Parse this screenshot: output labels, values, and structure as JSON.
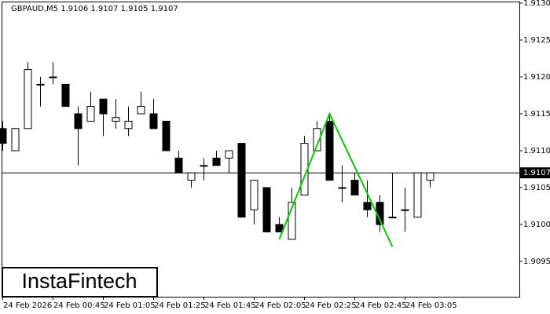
{
  "chart_data": {
    "type": "candlestick",
    "title": "GBPAUD,M5  1.9106 1.9107 1.9105 1.9107",
    "logo": "InstaFintech",
    "categories": [
      "24 Feb 2026",
      null,
      null,
      null,
      "24 Feb 00:45",
      null,
      null,
      null,
      "24 Feb 01:05",
      null,
      null,
      null,
      "24 Feb 01:25",
      null,
      null,
      null,
      "24 Feb 01:45",
      null,
      null,
      null,
      "24 Feb 02:05",
      null,
      null,
      null,
      "24 Feb 02:25",
      null,
      null,
      null,
      "24 Feb 02:45",
      null,
      null,
      null,
      "24 Feb 03:05",
      null,
      null
    ],
    "open": [
      1.9113,
      1.911,
      1.9113,
      1.9119,
      1.912,
      1.9119,
      1.9115,
      1.9114,
      1.9117,
      1.9114,
      1.9113,
      1.9115,
      1.9115,
      1.9114,
      1.9109,
      1.9106,
      1.9108,
      1.9109,
      1.9109,
      1.9111,
      1.9102,
      1.9105,
      1.91,
      1.9098,
      1.9104,
      1.911,
      1.9114,
      1.9105,
      1.9106,
      1.9103,
      1.9103,
      1.9101,
      1.9102,
      1.9101,
      1.9106
    ],
    "high": [
      1.9114,
      1.9113,
      1.9122,
      1.912,
      1.9122,
      1.9119,
      1.9116,
      1.9118,
      1.9117,
      1.9117,
      1.9116,
      1.9118,
      1.9117,
      1.9114,
      1.911,
      1.9107,
      1.9109,
      1.911,
      1.911,
      1.9111,
      1.9106,
      1.9105,
      1.9101,
      1.9105,
      1.9112,
      1.9114,
      1.9115,
      1.9108,
      1.9107,
      1.9106,
      1.9104,
      1.9107,
      1.9105,
      1.9107,
      1.9107
    ],
    "low": [
      1.911,
      1.911,
      1.9113,
      1.9116,
      1.9119,
      1.9116,
      1.9108,
      1.9114,
      1.9112,
      1.9113,
      1.9112,
      1.9115,
      1.9113,
      1.911,
      1.9107,
      1.9105,
      1.9106,
      1.9108,
      1.9107,
      1.9101,
      1.91,
      1.9099,
      1.9099,
      1.9098,
      1.9104,
      1.911,
      1.9106,
      1.9103,
      1.9104,
      1.9101,
      1.9099,
      1.9101,
      1.9099,
      1.9101,
      1.9105
    ],
    "close": [
      1.9111,
      1.9113,
      1.9121,
      1.9119,
      1.912,
      1.9116,
      1.9113,
      1.9116,
      1.9115,
      1.91145,
      1.9114,
      1.9116,
      1.9113,
      1.911,
      1.9107,
      1.9107,
      1.9108,
      1.9108,
      1.911,
      1.9101,
      1.9106,
      1.9099,
      1.9099,
      1.9103,
      1.9111,
      1.9113,
      1.9106,
      1.9105,
      1.9104,
      1.9102,
      1.91,
      1.9101,
      1.9102,
      1.9107,
      1.9107
    ],
    "up_color": "#ffffff",
    "down_color": "#000000",
    "last_price": 1.9107,
    "pattern": {
      "indices": [
        22,
        26,
        31
      ],
      "values": [
        1.9098,
        1.9115,
        1.9097
      ],
      "color": "#00cc00"
    },
    "ylim": [
      1.909,
      1.913
    ],
    "yticks": [
      1.9095,
      {
        "value": 1.91,
        "label": "1.9100"
      },
      1.9105,
      {
        "value": 1.911,
        "label": "1.9110"
      },
      1.9115,
      {
        "value": 1.912,
        "label": "1.9120"
      },
      1.9125,
      {
        "value": 1.913,
        "label": "1.9130"
      }
    ]
  }
}
